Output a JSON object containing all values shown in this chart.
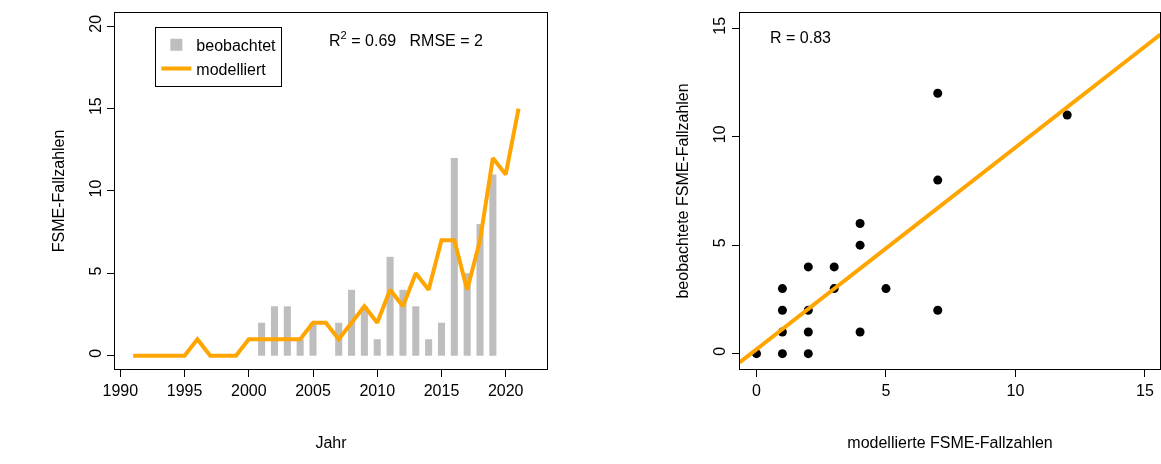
{
  "chart_data": [
    {
      "type": "bar",
      "xlabel": "Jahr",
      "ylabel": "FSME-Fallzahlen",
      "xlim": [
        1989.6,
        2023.2
      ],
      "ylim": [
        -0.8,
        20.8
      ],
      "xticks": [
        1990,
        1995,
        2000,
        2005,
        2010,
        2015,
        2020
      ],
      "yticks": [
        0,
        5,
        10,
        15,
        20
      ],
      "legend": "top left",
      "annotations": [
        "R$^{2}$ = 0.69   RMSE = 2"
      ],
      "series": [
        {
          "name": "beobachtet",
          "color": "#bebebe",
          "x": [
            1991,
            1992,
            1993,
            1994,
            1995,
            1996,
            1997,
            1998,
            1999,
            2000,
            2001,
            2002,
            2003,
            2004,
            2005,
            2006,
            2007,
            2008,
            2009,
            2010,
            2011,
            2012,
            2013,
            2014,
            2015,
            2016,
            2017,
            2018,
            2019
          ],
          "values": [
            0,
            0,
            0,
            0,
            0,
            0,
            0,
            0,
            0,
            0,
            2,
            3,
            3,
            1,
            2,
            0,
            2,
            4,
            3,
            1,
            6,
            4,
            3,
            1,
            2,
            12,
            5,
            8,
            11
          ]
        },
        {
          "name": "modelliert",
          "type": "line",
          "color": "#ffa500",
          "x": [
            1991,
            1992,
            1993,
            1994,
            1995,
            1996,
            1997,
            1998,
            1999,
            2000,
            2001,
            2002,
            2003,
            2004,
            2005,
            2006,
            2007,
            2008,
            2009,
            2010,
            2011,
            2012,
            2013,
            2014,
            2015,
            2016,
            2017,
            2018,
            2019,
            2020,
            2021
          ],
          "values": [
            0,
            0,
            0,
            0,
            0,
            1,
            0,
            0,
            0,
            1,
            1,
            1,
            1,
            1,
            2,
            2,
            1,
            2,
            3,
            2,
            4,
            3,
            5,
            4,
            7,
            7,
            4,
            7,
            12,
            11,
            15
          ]
        }
      ]
    },
    {
      "type": "scatter",
      "xlabel": "modellierte FSME-Fallzahlen",
      "ylabel": "beobachtete FSME-Fallzahlen",
      "xlim": [
        -0.65,
        15.6
      ],
      "ylim": [
        -0.7,
        15.7
      ],
      "xticks": [
        0,
        5,
        10,
        15
      ],
      "yticks": [
        0,
        5,
        10,
        15
      ],
      "annotations": [
        "R = 0.83"
      ],
      "series": [
        {
          "marker": "circle",
          "color": "#000000",
          "x": [
            0,
            1,
            2,
            1,
            2,
            4,
            1,
            2,
            7,
            1,
            3,
            5,
            2,
            3,
            4,
            4,
            7,
            7,
            12
          ],
          "values": [
            0,
            0,
            0,
            1,
            1,
            1,
            2,
            2,
            2,
            3,
            3,
            3,
            4,
            4,
            5,
            6,
            8,
            12,
            11
          ]
        },
        {
          "type": "line",
          "color": "#ffa500",
          "x": [
            -0.65,
            15.6
          ],
          "values": [
            -0.4,
            14.71
          ]
        }
      ]
    }
  ]
}
